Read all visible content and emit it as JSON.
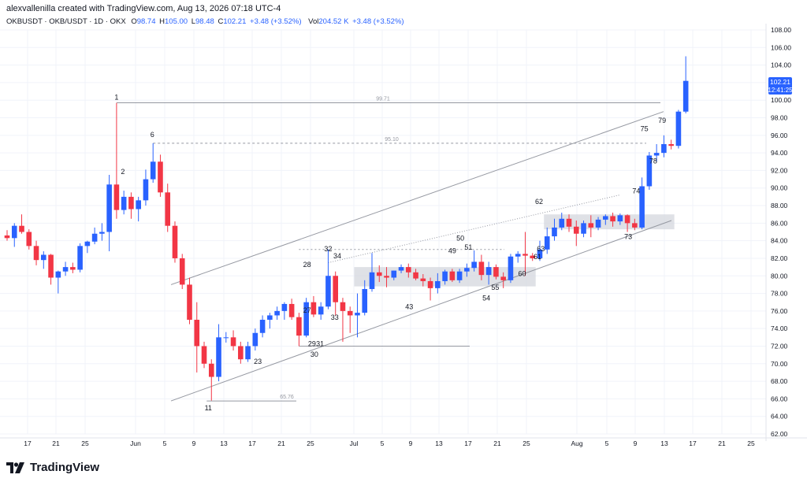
{
  "header": {
    "credit": "alexvallenilla created with TradingView.com, Aug 13, 2026 07:18 UTC-4",
    "symbol": "OKBUSDT · OKB/USDT · 1D · OKX",
    "o_label": "O",
    "o_value": "98.74",
    "h_label": "H",
    "h_value": "105.00",
    "l_label": "L",
    "l_value": "98.48",
    "c_label": "C",
    "c_value": "102.21",
    "change": "+3.48 (+3.52%)",
    "vol_label": "Vol",
    "vol_value": "204.52 K",
    "vol_change": "+3.48 (+3.52%)"
  },
  "price_tag": {
    "price": "102.21",
    "countdown": "12:41:25"
  },
  "branding": {
    "name": "TradingView"
  },
  "colors": {
    "up": "#2962ff",
    "down": "#f23645",
    "grid": "#f0f3fa",
    "line": "#9598a1",
    "zone": "#d1d4dc"
  },
  "chart_data": {
    "type": "candlestick",
    "y_axis": {
      "min": 62,
      "max": 108,
      "ticks": [
        62,
        64,
        66,
        68,
        70,
        72,
        74,
        76,
        78,
        80,
        82,
        84,
        86,
        88,
        90,
        92,
        94,
        96,
        98,
        100,
        102,
        104,
        106,
        108
      ]
    },
    "x_tick_labels": [
      "17",
      "21",
      "25",
      "Jun",
      "5",
      "9",
      "13",
      "17",
      "21",
      "25",
      "Jul",
      "5",
      "9",
      "13",
      "17",
      "21",
      "25",
      "Aug",
      "5",
      "9",
      "13",
      "17",
      "21",
      "25"
    ],
    "candles": [
      [
        84.6,
        85.2,
        84.0,
        84.3
      ],
      [
        84.3,
        86.0,
        83.3,
        85.7
      ],
      [
        85.7,
        87.0,
        84.8,
        85.0
      ],
      [
        85.0,
        85.3,
        83.0,
        83.4
      ],
      [
        83.4,
        84.0,
        81.2,
        81.8
      ],
      [
        81.8,
        82.8,
        80.8,
        82.4
      ],
      [
        82.4,
        82.5,
        79.0,
        79.8
      ],
      [
        79.8,
        80.6,
        78.0,
        80.5
      ],
      [
        80.5,
        81.6,
        80.0,
        81.0
      ],
      [
        81.0,
        81.5,
        80.3,
        80.7
      ],
      [
        80.7,
        83.7,
        80.4,
        83.4
      ],
      [
        83.4,
        84.0,
        82.6,
        83.9
      ],
      [
        83.9,
        85.5,
        83.6,
        84.8
      ],
      [
        84.8,
        86.0,
        84.0,
        85.0
      ],
      [
        85.0,
        91.5,
        82.8,
        90.4
      ],
      [
        90.4,
        99.7,
        86.5,
        87.5
      ],
      [
        87.5,
        89.7,
        87.0,
        89.0
      ],
      [
        89.0,
        89.5,
        86.5,
        87.6
      ],
      [
        87.6,
        89.0,
        86.2,
        88.6
      ],
      [
        88.6,
        92.1,
        88.0,
        91.0
      ],
      [
        91.0,
        95.1,
        90.6,
        93.0
      ],
      [
        93.0,
        93.8,
        89.0,
        89.5
      ],
      [
        89.5,
        90.5,
        85.0,
        85.7
      ],
      [
        85.7,
        86.2,
        81.5,
        82.0
      ],
      [
        82.0,
        82.5,
        78.5,
        79.0
      ],
      [
        79.0,
        79.8,
        74.5,
        75.0
      ],
      [
        75.0,
        77.0,
        69.0,
        72.0
      ],
      [
        72.0,
        72.5,
        69.5,
        70.0
      ],
      [
        70.0,
        70.5,
        65.8,
        68.5
      ],
      [
        68.5,
        74.5,
        68.0,
        73.0
      ],
      [
        73.0,
        73.6,
        72.4,
        73.0
      ],
      [
        73.0,
        73.8,
        71.5,
        72.0
      ],
      [
        72.0,
        72.5,
        70.0,
        70.5
      ],
      [
        70.5,
        72.5,
        70.2,
        72.0
      ],
      [
        72.0,
        74.0,
        71.5,
        73.5
      ],
      [
        73.5,
        75.5,
        73.0,
        75.0
      ],
      [
        75.0,
        75.8,
        74.0,
        75.5
      ],
      [
        75.5,
        76.5,
        75.0,
        76.0
      ],
      [
        76.0,
        77.0,
        75.0,
        76.8
      ],
      [
        76.8,
        77.4,
        75.0,
        75.3
      ],
      [
        75.3,
        75.8,
        72.0,
        73.2
      ],
      [
        73.2,
        77.5,
        73.0,
        77.0
      ],
      [
        77.0,
        77.7,
        75.3,
        75.6
      ],
      [
        75.6,
        77.0,
        75.0,
        76.5
      ],
      [
        76.5,
        83.0,
        76.2,
        80.0
      ],
      [
        80.0,
        80.5,
        75.5,
        77.0
      ],
      [
        77.0,
        77.5,
        72.5,
        76.0
      ],
      [
        76.0,
        76.5,
        73.5,
        75.5
      ],
      [
        75.5,
        78.0,
        73.0,
        75.8
      ],
      [
        75.8,
        79.5,
        75.5,
        78.5
      ],
      [
        78.5,
        82.6,
        78.2,
        80.4
      ],
      [
        80.4,
        81.2,
        79.3,
        80.0
      ],
      [
        80.0,
        81.0,
        78.7,
        79.8
      ],
      [
        79.8,
        80.6,
        79.5,
        80.6
      ],
      [
        80.6,
        81.3,
        80.3,
        81.0
      ],
      [
        81.0,
        81.4,
        79.8,
        80.4
      ],
      [
        80.4,
        80.8,
        79.5,
        79.7
      ],
      [
        79.7,
        80.2,
        78.8,
        79.4
      ],
      [
        79.4,
        79.8,
        77.2,
        78.6
      ],
      [
        78.6,
        80.3,
        78.0,
        79.4
      ],
      [
        79.4,
        80.7,
        79.0,
        80.5
      ],
      [
        80.5,
        80.8,
        79.3,
        79.5
      ],
      [
        79.5,
        80.8,
        79.2,
        80.5
      ],
      [
        80.5,
        81.4,
        79.9,
        80.9
      ],
      [
        80.9,
        82.9,
        80.5,
        81.6
      ],
      [
        81.6,
        82.4,
        79.5,
        80.1
      ],
      [
        80.1,
        81.6,
        79.0,
        81.0
      ],
      [
        81.0,
        81.3,
        79.6,
        79.9
      ],
      [
        79.9,
        80.4,
        78.6,
        79.5
      ],
      [
        79.5,
        82.5,
        79.2,
        82.2
      ],
      [
        82.2,
        82.8,
        81.5,
        82.5
      ],
      [
        82.5,
        85.0,
        80.0,
        82.3
      ],
      [
        82.3,
        82.6,
        81.7,
        82.0
      ],
      [
        82.0,
        84.0,
        81.7,
        83.0
      ],
      [
        83.0,
        85.5,
        82.5,
        84.5
      ],
      [
        84.5,
        86.5,
        84.0,
        85.5
      ],
      [
        85.5,
        87.2,
        85.2,
        86.5
      ],
      [
        86.5,
        87.0,
        85.0,
        85.6
      ],
      [
        85.6,
        86.3,
        83.4,
        84.8
      ],
      [
        84.8,
        86.3,
        84.4,
        86.0
      ],
      [
        86.0,
        86.9,
        84.4,
        85.5
      ],
      [
        85.5,
        86.7,
        85.2,
        86.4
      ],
      [
        86.4,
        87.0,
        85.8,
        86.8
      ],
      [
        86.8,
        87.2,
        85.6,
        86.2
      ],
      [
        86.2,
        87.1,
        85.8,
        86.9
      ],
      [
        86.9,
        87.0,
        85.0,
        86.0
      ],
      [
        86.0,
        86.5,
        85.2,
        85.5
      ],
      [
        85.5,
        91.2,
        85.3,
        90.2
      ],
      [
        90.2,
        94.1,
        89.8,
        93.7
      ],
      [
        93.7,
        95.0,
        93.0,
        94.0
      ],
      [
        94.0,
        96.0,
        93.5,
        95.0
      ],
      [
        95.0,
        95.5,
        94.4,
        94.8
      ],
      [
        94.8,
        98.9,
        94.5,
        98.7
      ],
      [
        98.7,
        105.0,
        98.5,
        102.2
      ]
    ],
    "price_labels": [
      {
        "text": "99.71",
        "value": 99.71
      },
      {
        "text": "95.10",
        "value": 95.1
      },
      {
        "text": "65.76",
        "value": 65.76
      }
    ],
    "wave_labels": [
      "1",
      "2",
      "6",
      "11",
      "23",
      "27",
      "28",
      "29",
      "30",
      "31",
      "32",
      "33",
      "34",
      "43",
      "49",
      "50",
      "51",
      "54",
      "55",
      "60",
      "61",
      "62",
      "63",
      "73",
      "74",
      "75",
      "78",
      "79"
    ]
  }
}
